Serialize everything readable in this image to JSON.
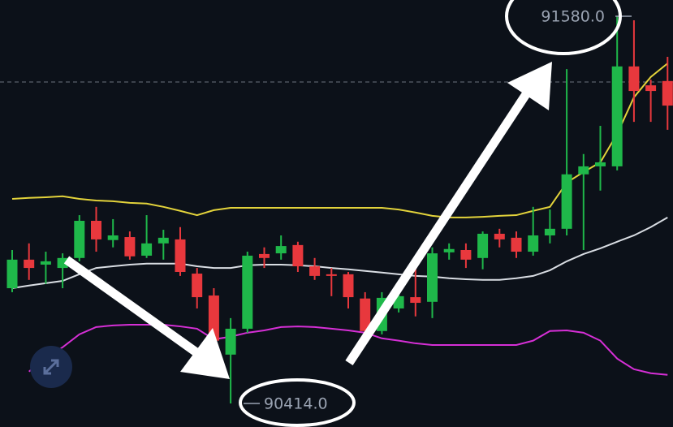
{
  "chart_data": {
    "type": "candlestick",
    "ylim": [
      90343,
      91629
    ],
    "up_color": "#1fb84a",
    "down_color": "#e8383d",
    "open": [
      90761,
      90847,
      90832,
      90822,
      90852,
      90964,
      90906,
      90915,
      90859,
      90896,
      90908,
      90805,
      90739,
      90561,
      90639,
      90864,
      90866,
      90891,
      90827,
      90803,
      90803,
      90730,
      90632,
      90700,
      90734,
      90720,
      90869,
      90876,
      90852,
      90925,
      90913,
      90871,
      90920,
      90940,
      91104,
      91128,
      91128,
      91429,
      91372,
      91385
    ],
    "high": [
      90876,
      90896,
      90871,
      90866,
      90981,
      91006,
      90969,
      90932,
      90981,
      90937,
      90945,
      90822,
      90761,
      90671,
      90871,
      90884,
      90920,
      90901,
      90852,
      90822,
      90810,
      90749,
      90749,
      90761,
      90835,
      90884,
      90896,
      90896,
      90932,
      90940,
      90932,
      91006,
      90998,
      91421,
      91165,
      91250,
      91580,
      91568,
      91389,
      91458
    ],
    "low": [
      90749,
      90786,
      90774,
      90761,
      90842,
      90871,
      90884,
      90847,
      90852,
      90847,
      90798,
      90700,
      90566,
      90414,
      90627,
      90822,
      90847,
      90810,
      90786,
      90737,
      90700,
      90622,
      90622,
      90688,
      90676,
      90671,
      90847,
      90822,
      90818,
      90884,
      90852,
      90859,
      90896,
      90920,
      90876,
      91055,
      91116,
      91262,
      91262,
      91238
    ],
    "close": [
      90847,
      90822,
      90842,
      90852,
      90964,
      90908,
      90920,
      90857,
      90896,
      90913,
      90810,
      90734,
      90603,
      90639,
      90859,
      90852,
      90888,
      90827,
      90798,
      90798,
      90734,
      90632,
      90732,
      90737,
      90717,
      90866,
      90879,
      90847,
      90925,
      90908,
      90871,
      90920,
      90940,
      91104,
      91128,
      91140,
      91429,
      91355,
      91355,
      91311
    ],
    "lines": [
      {
        "color": "#e3d33b",
        "values": [
          91030,
          91033,
          91035,
          91038,
          91030,
          91025,
          91023,
          91018,
          91016,
          91006,
          90994,
          90981,
          90996,
          91003,
          91003,
          91003,
          91003,
          91003,
          91003,
          91003,
          91003,
          91003,
          91003,
          90998,
          90989,
          90979,
          90974,
          90974,
          90976,
          90979,
          90981,
          90994,
          91006,
          91079,
          91111,
          91140,
          91226,
          91336,
          91397,
          91438
        ]
      },
      {
        "color": "#d9dde3",
        "values": [
          90761,
          90769,
          90776,
          90783,
          90803,
          90822,
          90827,
          90832,
          90835,
          90835,
          90835,
          90827,
          90822,
          90822,
          90830,
          90832,
          90832,
          90830,
          90827,
          90822,
          90818,
          90813,
          90808,
          90803,
          90798,
          90796,
          90791,
          90788,
          90786,
          90786,
          90791,
          90798,
          90815,
          90842,
          90864,
          90881,
          90901,
          90920,
          90945,
          90974
        ]
      },
      {
        "color": "#d62fd6",
        "values": [
          null,
          90510,
          90554,
          90583,
          90622,
          90644,
          90649,
          90651,
          90651,
          90651,
          90646,
          90639,
          90607,
          90615,
          90627,
          90634,
          90644,
          90646,
          90644,
          90639,
          90634,
          90627,
          90610,
          90603,
          90595,
          90590,
          90590,
          90590,
          90590,
          90590,
          90590,
          90603,
          90632,
          90634,
          90627,
          90603,
          90549,
          90517,
          90505,
          90500
        ]
      }
    ],
    "reference_line": 91382,
    "annotations": [
      {
        "value": 91580,
        "label": "91580.0"
      },
      {
        "value": 90414,
        "label": "90414.0"
      }
    ]
  }
}
